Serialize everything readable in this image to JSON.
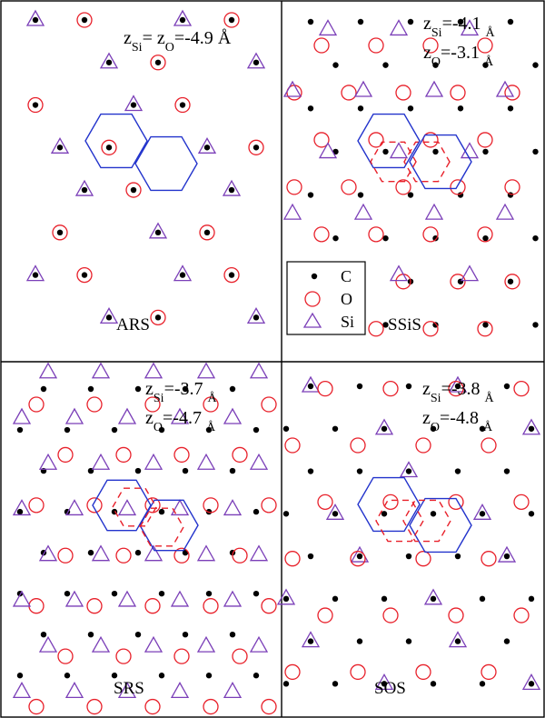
{
  "figure": {
    "colors": {
      "carbon": "#000000",
      "oxygen": "#e8202a",
      "silicon": "#7b3fb8",
      "hexagon_solid": "#2233cc",
      "hexagon_dashed": "#e8202a",
      "frame": "#000000"
    },
    "panels": [
      {
        "id": "ARS",
        "name": "ARS",
        "annotation_lines": [
          {
            "parts": [
              "z",
              "Si",
              "= z",
              "O",
              "=-4.9 ",
              "Å"
            ]
          }
        ],
        "lattice": "aligned",
        "has_dashed_hexagons": false
      },
      {
        "id": "SSiS",
        "name": "SSiS",
        "annotation_lines": [
          {
            "parts": [
              "z",
              "Si",
              "=-4.1 ",
              "Å"
            ]
          },
          {
            "parts": [
              "z",
              "O",
              "=-3.1 ",
              "Å"
            ]
          }
        ],
        "lattice": "shifted",
        "has_dashed_hexagons": true
      },
      {
        "id": "SRS",
        "name": "SRS",
        "annotation_lines": [
          {
            "parts": [
              "z",
              "Si",
              "=-3.7 ",
              "Å"
            ]
          },
          {
            "parts": [
              "z",
              "O",
              "=-4.7 ",
              "Å"
            ]
          }
        ],
        "lattice": "rotated",
        "has_dashed_hexagons": true
      },
      {
        "id": "SOS",
        "name": "SOS",
        "annotation_lines": [
          {
            "parts": [
              "z",
              "Si",
              "=-3.8 ",
              "Å"
            ]
          },
          {
            "parts": [
              "z",
              "O",
              "=-4.8 ",
              "Å"
            ]
          }
        ],
        "lattice": "shifted",
        "has_dashed_hexagons": true
      }
    ],
    "legend": {
      "items": [
        {
          "symbol": "dot",
          "label": "C"
        },
        {
          "symbol": "circle",
          "label": "O"
        },
        {
          "symbol": "triangle",
          "label": "Si"
        }
      ]
    }
  }
}
